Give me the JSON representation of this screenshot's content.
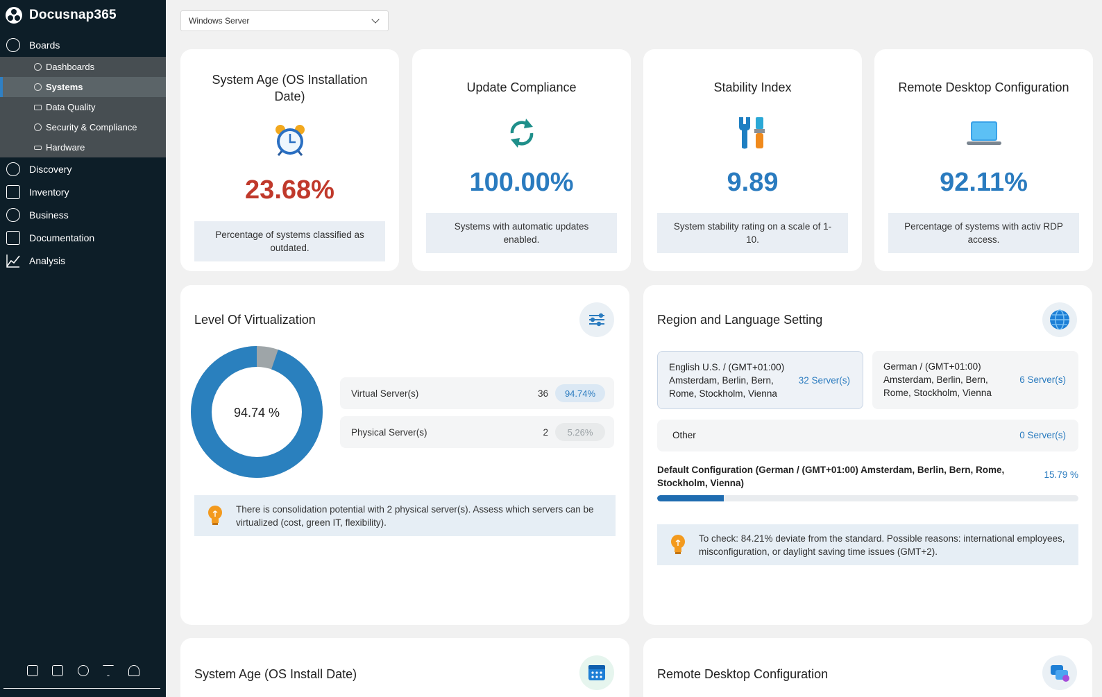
{
  "app": {
    "name": "Docusnap365"
  },
  "sidebar": {
    "boards_label": "Boards",
    "sub_items": [
      "Dashboards",
      "Systems",
      "Data Quality",
      "Security & Compliance",
      "Hardware"
    ],
    "active_sub_item": "Systems",
    "items": [
      "Discovery",
      "Inventory",
      "Business",
      "Documentation",
      "Analysis"
    ],
    "bottom_icons": [
      "cart-icon",
      "database-settings-icon",
      "gears-icon",
      "filter-icon",
      "bell-icon"
    ]
  },
  "filter": {
    "selected": "Windows Server"
  },
  "kpis": [
    {
      "title": "System Age (OS Installation Date)",
      "value": "23.68%",
      "description": "Percentage of systems classified as outdated.",
      "icon": "alarm-clock-icon",
      "value_color": "#c0392b"
    },
    {
      "title": "Update Compliance",
      "value": "100.00%",
      "description": "Systems with automatic updates enabled.",
      "icon": "sync-icon",
      "value_color": "#2a7bbf"
    },
    {
      "title": "Stability Index",
      "value": "9.89",
      "description": "System stability rating on a scale of 1-10.",
      "icon": "tools-icon",
      "value_color": "#2a7bbf"
    },
    {
      "title": "Remote Desktop Configuration",
      "value": "92.11%",
      "description": "Percentage of systems with activ RDP access.",
      "icon": "laptop-icon",
      "value_color": "#2a7bbf"
    }
  ],
  "virtualization": {
    "title": "Level Of Virtualization",
    "center_label": "94.74 %",
    "virtual_fraction": 0.9474,
    "rows": [
      {
        "label": "Virtual Server(s)",
        "count": "36",
        "percent": "94.74%"
      },
      {
        "label": "Physical Server(s)",
        "count": "2",
        "percent": "5.26%"
      }
    ],
    "tip": "There is consolidation potential with 2 physical server(s). Assess which servers can be virtualized (cost, green IT, flexibility)."
  },
  "region": {
    "title": "Region and Language Setting",
    "boxes": [
      {
        "line1": "English U.S. / (GMT+01:00)",
        "line2": "Amsterdam, Berlin, Bern,",
        "line3": "Rome, Stockholm, Vienna",
        "count": "32 Server(s)"
      },
      {
        "line1": "German / (GMT+01:00)",
        "line2": "Amsterdam, Berlin, Bern,",
        "line3": "Rome, Stockholm, Vienna",
        "count": "6 Server(s)"
      }
    ],
    "other": {
      "label": "Other",
      "count": "0 Server(s)"
    },
    "default_config": {
      "label": "Default Configuration (German / (GMT+01:00) Amsterdam, Berlin, Bern, Rome, Stockholm, Vienna)",
      "percent": "15.79 %",
      "fraction": 0.1579
    },
    "tip": "To check: 84.21% deviate from the standard. Possible reasons: international employees, misconfiguration, or daylight saving time issues (GMT+2)."
  },
  "bottom_cards": [
    {
      "title": "System Age (OS Install Date)",
      "icon": "calendar-icon"
    },
    {
      "title": "Remote Desktop Configuration",
      "icon": "remote-desktop-icon"
    }
  ]
}
